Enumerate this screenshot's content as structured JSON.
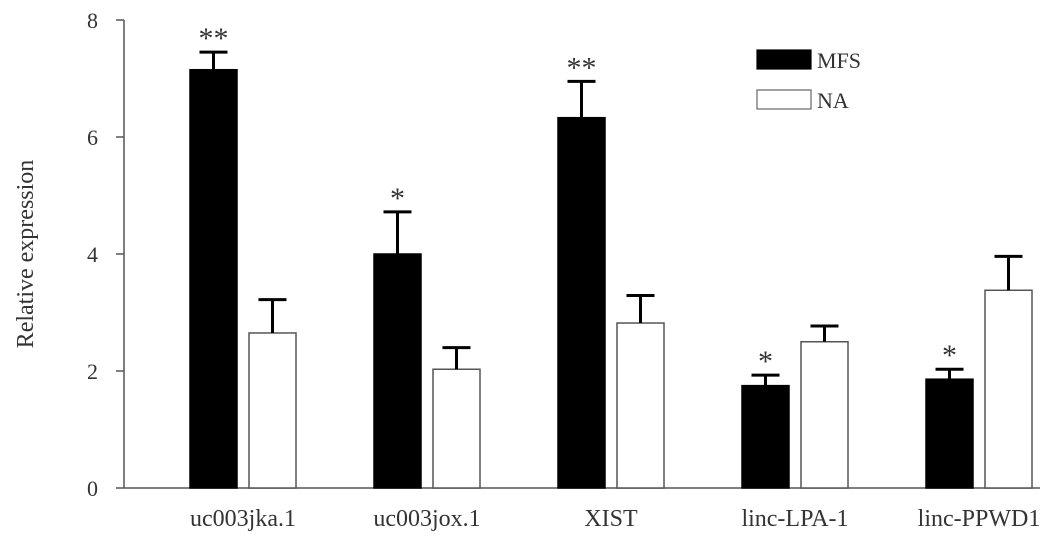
{
  "chart_data": {
    "type": "bar",
    "title": "",
    "xlabel": "",
    "ylabel": "Relative expression",
    "ylim": [
      0,
      8
    ],
    "yticks": [
      0,
      2,
      4,
      6,
      8
    ],
    "grid": false,
    "legend_position": "top-right",
    "categories": [
      "uc003jka.1",
      "uc003jox.1",
      "XIST",
      "linc-LPA-1",
      "linc-PPWD1"
    ],
    "series": [
      {
        "name": "MFS",
        "fill": "#000000",
        "values": [
          7.15,
          4.0,
          6.33,
          1.75,
          1.86
        ],
        "errors": [
          0.3,
          0.72,
          0.62,
          0.18,
          0.17
        ],
        "significance": [
          "**",
          "*",
          "**",
          "*",
          "*"
        ]
      },
      {
        "name": "NA",
        "fill": "#ffffff",
        "values": [
          2.65,
          2.03,
          2.82,
          2.5,
          3.38
        ],
        "errors": [
          0.57,
          0.37,
          0.47,
          0.27,
          0.58
        ],
        "significance": [
          "",
          "",
          "",
          "",
          ""
        ]
      }
    ]
  }
}
